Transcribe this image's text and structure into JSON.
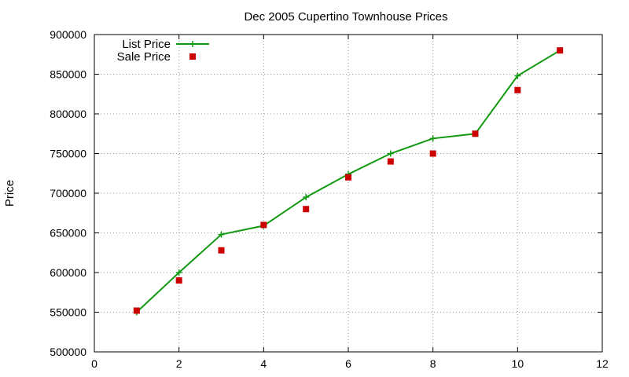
{
  "chart_data": {
    "type": "line",
    "title": "Dec 2005 Cupertino Townhouse Prices",
    "ylabel": "Price",
    "xlabel": "",
    "xlim": [
      0,
      12
    ],
    "ylim": [
      500000,
      900000
    ],
    "xticks": [
      0,
      2,
      4,
      6,
      8,
      10,
      12
    ],
    "yticks": [
      500000,
      550000,
      600000,
      650000,
      700000,
      750000,
      800000,
      850000,
      900000
    ],
    "grid": true,
    "legend_position": "top-left",
    "series": [
      {
        "name": "List Price",
        "style": "line-with-plus-markers",
        "color": "#119911",
        "x": [
          1,
          2,
          3,
          4,
          5,
          6,
          7,
          8,
          9,
          10,
          11
        ],
        "y": [
          550000,
          600000,
          648000,
          659000,
          695000,
          724000,
          750000,
          769000,
          775000,
          848000,
          880000
        ]
      },
      {
        "name": "Sale Price",
        "style": "square-markers",
        "color": "#cc0000",
        "x": [
          1,
          2,
          3,
          4,
          5,
          6,
          7,
          8,
          9,
          10,
          11
        ],
        "y": [
          552000,
          590000,
          628000,
          660000,
          680000,
          720000,
          740000,
          750000,
          775000,
          830000,
          880000
        ]
      }
    ]
  }
}
